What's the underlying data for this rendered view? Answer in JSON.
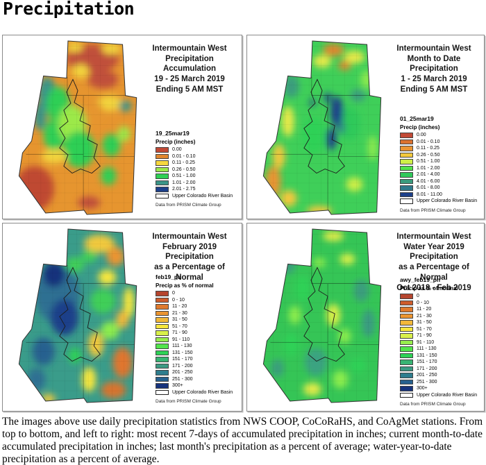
{
  "page_title": "Precipitation",
  "caption": "The images above use daily precipitation statistics from NWS COOP, CoCoRaHS, and CoAgMet stations. From top to bottom, and left to right: most recent 7-days of accumulated precipitation in inches; current month-to-date accumulated precipitation in inches; last month's precipitation as a percent of average; water-year-to-date precipitation as a percent of average.",
  "panels": [
    {
      "id": "seven-day-accumulation",
      "title_lines": [
        "Intermountain West",
        "Precipitation Accumulation",
        "19 - 25 March 2019",
        "Ending 5 AM MST"
      ],
      "legend": {
        "layer_name": "19_25mar19",
        "units_label": "Precip (inches)",
        "classes": [
          {
            "color": "#c14a36",
            "label": "0.00"
          },
          {
            "color": "#e0872f",
            "label": "0.01 - 0.10"
          },
          {
            "color": "#f7d73e",
            "label": "0.11 - 0.25"
          },
          {
            "color": "#9ce94a",
            "label": "0.26 - 0.50"
          },
          {
            "color": "#2fcf55",
            "label": "0.51 - 1.00"
          },
          {
            "color": "#3a9488",
            "label": "1.01 - 2.00"
          },
          {
            "color": "#1c3f8a",
            "label": "2.01 - 2.75"
          }
        ],
        "outline_label": "Upper Colorado River Basin",
        "source_note": "Data from PRISM Climate Group"
      }
    },
    {
      "id": "month-to-date",
      "title_lines": [
        "Intermountain West",
        "Month to Date Precipitation",
        "1 - 25 March 2019",
        "Ending 5 AM MST"
      ],
      "legend": {
        "layer_name": "01_25mar19",
        "units_label": "Precip (inches)",
        "classes": [
          {
            "color": "#c14a36",
            "label": "0.00"
          },
          {
            "color": "#db7230",
            "label": "0.01 - 0.10"
          },
          {
            "color": "#ea9433",
            "label": "0.11 - 0.25"
          },
          {
            "color": "#f3c83c",
            "label": "0.26 - 0.50"
          },
          {
            "color": "#cfef47",
            "label": "0.51 - 1.00"
          },
          {
            "color": "#52e24c",
            "label": "1.01 - 2.00"
          },
          {
            "color": "#2fc95a",
            "label": "2.01 - 4.00"
          },
          {
            "color": "#3a9c7e",
            "label": "4.01 - 6.00"
          },
          {
            "color": "#2f7a8c",
            "label": "6.01 - 8.00"
          },
          {
            "color": "#1c3f8a",
            "label": "8.01 - 11.00"
          }
        ],
        "outline_label": "Upper Colorado River Basin",
        "source_note": "Data from PRISM Climate Group"
      }
    },
    {
      "id": "february-percent-normal",
      "title_lines": [
        "Intermountain West",
        "February 2019 Precipitation",
        "as a Percentage of Normal"
      ],
      "legend": {
        "layer_name": "feb19_pn",
        "units_label": "Precip as % of normal",
        "classes": [
          {
            "color": "#b5452e",
            "label": "0"
          },
          {
            "color": "#cd5c2c",
            "label": "0 - 10"
          },
          {
            "color": "#df7a2d",
            "label": "11 - 20"
          },
          {
            "color": "#eb9430",
            "label": "21 - 30"
          },
          {
            "color": "#f2b83a",
            "label": "31 - 50"
          },
          {
            "color": "#f7e63e",
            "label": "51 - 70"
          },
          {
            "color": "#d9f04a",
            "label": "71 - 90"
          },
          {
            "color": "#97ed4d",
            "label": "91 - 110"
          },
          {
            "color": "#52e44c",
            "label": "111 - 130"
          },
          {
            "color": "#2ed156",
            "label": "131 - 150"
          },
          {
            "color": "#38b473",
            "label": "151 - 170"
          },
          {
            "color": "#3b9a83",
            "label": "171 - 200"
          },
          {
            "color": "#2f7d8e",
            "label": "201 - 250"
          },
          {
            "color": "#27618f",
            "label": "251 - 300"
          },
          {
            "color": "#16337c",
            "label": "300+"
          }
        ],
        "outline_label": "Upper Colorado River Basin",
        "source_note": "Data from PRISM Climate Group"
      }
    },
    {
      "id": "water-year-percent-normal",
      "title_lines": [
        "Intermountain West",
        "Water Year 2019 Precipitation",
        "as a Percentage of Normal",
        "Oct 2018 - Feb 2019"
      ],
      "legend": {
        "layer_name": "awy_feb19_pn",
        "units_label": "Precip as % of normal",
        "classes": [
          {
            "color": "#b5452e",
            "label": "0"
          },
          {
            "color": "#cd5c2c",
            "label": "0 - 10"
          },
          {
            "color": "#df7a2d",
            "label": "11 - 20"
          },
          {
            "color": "#eb9430",
            "label": "21 - 30"
          },
          {
            "color": "#f2b83a",
            "label": "31 - 50"
          },
          {
            "color": "#f7e63e",
            "label": "51 - 70"
          },
          {
            "color": "#d9f04a",
            "label": "71 - 90"
          },
          {
            "color": "#97ed4d",
            "label": "91 - 110"
          },
          {
            "color": "#52e44c",
            "label": "111 - 130"
          },
          {
            "color": "#2ed156",
            "label": "131 - 150"
          },
          {
            "color": "#38b473",
            "label": "151 - 170"
          },
          {
            "color": "#3b9a83",
            "label": "171 - 200"
          },
          {
            "color": "#2f7d8e",
            "label": "201 - 250"
          },
          {
            "color": "#27618f",
            "label": "251 - 300"
          },
          {
            "color": "#16337c",
            "label": "300+"
          }
        ],
        "outline_label": "Upper Colorado River Basin",
        "source_note": "Data from PRISM Climate Group"
      }
    }
  ]
}
